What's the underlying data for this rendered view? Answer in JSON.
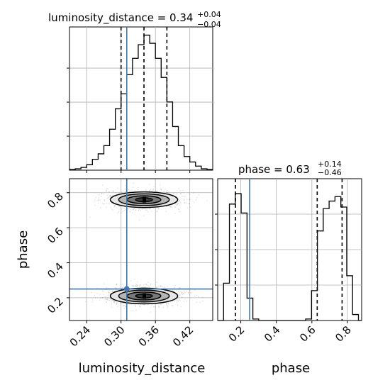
{
  "colors": {
    "truth": "#4477aa",
    "hist": "#000000",
    "grid": "#b0b0b0"
  },
  "chart_data": [
    {
      "panel": "luminosity_distance-marginal",
      "type": "histogram",
      "title": {
        "text": "luminosity_distance = 0.34",
        "sup": "+0.04",
        "sub": "−0.04"
      },
      "xlim": [
        0.21,
        0.46
      ],
      "ylim": [
        0,
        1.0
      ],
      "grid": true,
      "bin_edges": [
        0.21,
        0.22,
        0.23,
        0.24,
        0.25,
        0.26,
        0.27,
        0.28,
        0.29,
        0.3,
        0.31,
        0.32,
        0.33,
        0.34,
        0.35,
        0.36,
        0.37,
        0.38,
        0.39,
        0.4,
        0.41,
        0.42,
        0.43,
        0.44,
        0.45,
        0.46
      ],
      "counts": [
        0.005,
        0.01,
        0.02,
        0.04,
        0.08,
        0.12,
        0.18,
        0.3,
        0.45,
        0.56,
        0.7,
        0.82,
        0.92,
        0.99,
        0.93,
        0.82,
        0.68,
        0.5,
        0.32,
        0.18,
        0.1,
        0.06,
        0.03,
        0.01,
        0.005
      ],
      "quantiles": [
        0.3,
        0.34,
        0.38
      ],
      "truth": 0.31
    },
    {
      "panel": "phase-marginal",
      "type": "histogram",
      "title": {
        "text": "phase = 0.63",
        "sup": "+0.14",
        "sub": "−0.46"
      },
      "xlim": [
        0.07,
        0.88
      ],
      "ylim": [
        0,
        1.0
      ],
      "grid": true,
      "xticks": [
        0.2,
        0.4,
        0.6,
        0.8
      ],
      "xticklabels": [
        "0.2",
        "0.4",
        "0.6",
        "0.8"
      ],
      "xlabel": "phase",
      "bin_edges": [
        0.07,
        0.103,
        0.136,
        0.169,
        0.202,
        0.235,
        0.268,
        0.301,
        0.334,
        0.367,
        0.4,
        0.433,
        0.466,
        0.499,
        0.532,
        0.565,
        0.598,
        0.631,
        0.664,
        0.697,
        0.73,
        0.763,
        0.796,
        0.829,
        0.862,
        0.88
      ],
      "counts": [
        0.0,
        0.25,
        0.78,
        0.85,
        0.72,
        0.15,
        0.01,
        0.0,
        0.0,
        0.0,
        0.0,
        0.0,
        0.0,
        0.0,
        0.0,
        0.01,
        0.2,
        0.6,
        0.75,
        0.8,
        0.83,
        0.76,
        0.3,
        0.04,
        0.0
      ],
      "quantiles": [
        0.17,
        0.63,
        0.77
      ],
      "truth": 0.25
    },
    {
      "panel": "phase-vs-luminosity_distance",
      "type": "scatter",
      "xlim": [
        0.21,
        0.46
      ],
      "ylim": [
        0.07,
        0.88
      ],
      "grid": true,
      "xticks": [
        0.24,
        0.3,
        0.36,
        0.42
      ],
      "xticklabels": [
        "0.24",
        "0.30",
        "0.36",
        "0.42"
      ],
      "yticks": [
        0.2,
        0.4,
        0.6,
        0.8
      ],
      "yticklabels": [
        "0.2",
        "0.4",
        "0.6",
        "0.8"
      ],
      "xlabel": "luminosity_distance",
      "ylabel": "phase",
      "modes": [
        {
          "center": [
            0.34,
            0.76
          ],
          "sx": 0.028,
          "sy": 0.032
        },
        {
          "center": [
            0.34,
            0.21
          ],
          "sx": 0.028,
          "sy": 0.032
        }
      ],
      "contour_levels": [
        0.5,
        1.0,
        1.5,
        2.0
      ],
      "truth": [
        0.31,
        0.25
      ]
    }
  ]
}
